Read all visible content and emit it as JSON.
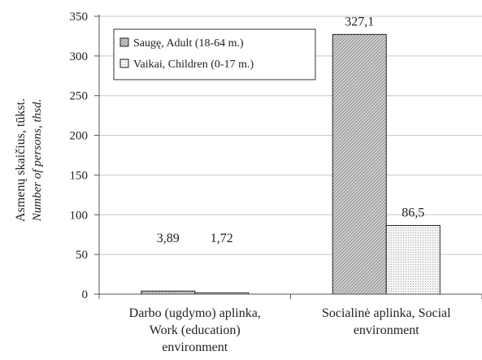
{
  "chart_data": {
    "type": "bar",
    "title": "",
    "ylabel": "Asmenų skaičius, tūkst.",
    "ylabel_secondary": "Number of persons, thsd.",
    "xlabel": "",
    "ylim": [
      0,
      350
    ],
    "yticks": [
      0,
      50,
      100,
      150,
      200,
      250,
      300,
      350
    ],
    "grid": true,
    "legend_position": "top-left",
    "categories": [
      [
        "Darbo (ugdymo) aplinka,",
        "Work (education)",
        "environment"
      ],
      [
        "Socialinė aplinka, Social",
        "environment"
      ]
    ],
    "series": [
      {
        "name": "Saugę, Adult (18-64 m.)",
        "values": [
          3.89,
          327.1
        ],
        "labels": [
          "3,89",
          "327,1"
        ],
        "fill": "#c8c8c8",
        "pattern": "diagonal"
      },
      {
        "name": "Vaikai, Children (0-17 m.)",
        "values": [
          1.72,
          86.5
        ],
        "labels": [
          "1,72",
          "86,5"
        ],
        "fill": "#f2f2f2",
        "pattern": "dots"
      }
    ],
    "colors": {
      "grid": "#c8c8c8",
      "axis": "#555555",
      "bar_stroke": "#222222"
    }
  }
}
